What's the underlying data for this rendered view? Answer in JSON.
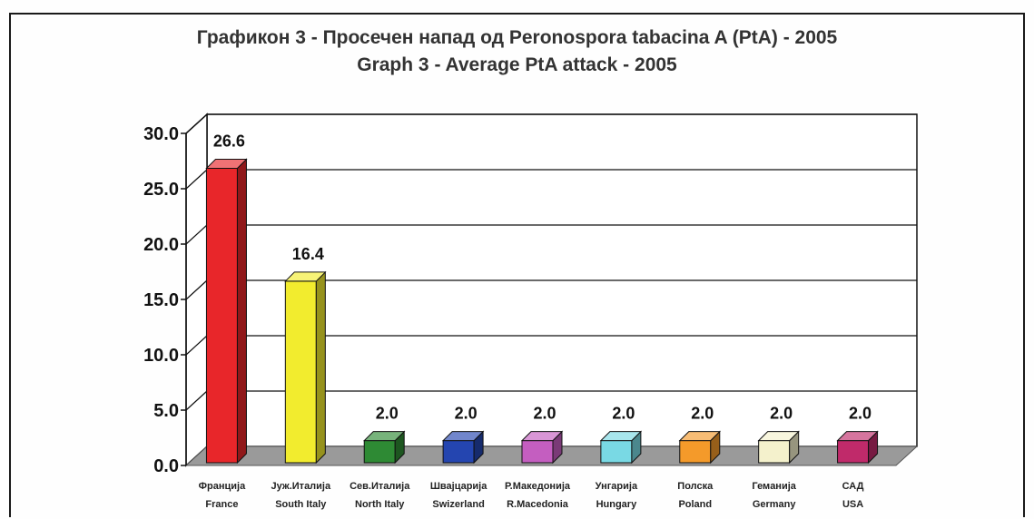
{
  "chart_data": {
    "type": "bar",
    "title": "Графикон 3 - Просечен напад од  Peronospora tabacina A (PtA) - 2005",
    "subtitle": "Graph 3 - Average PtA attack  - 2005",
    "categories": [
      {
        "line1": "Франција",
        "line2": "France"
      },
      {
        "line1": "Јуж.Италија",
        "line2": "South Italy"
      },
      {
        "line1": "Сев.Италија",
        "line2": "North Italy"
      },
      {
        "line1": "Швајцарија",
        "line2": "Swizerland"
      },
      {
        "line1": "Р.Македонија",
        "line2": "R.Macedonia"
      },
      {
        "line1": "Унгарија",
        "line2": "Hungary"
      },
      {
        "line1": "Полска",
        "line2": "Poland"
      },
      {
        "line1": "Гемaнија",
        "line2": "Germany"
      },
      {
        "line1": "САД",
        "line2": "USA"
      }
    ],
    "values": [
      26.6,
      16.4,
      2.0,
      2.0,
      2.0,
      2.0,
      2.0,
      2.0,
      2.0
    ],
    "value_labels": [
      "26.6",
      "16.4",
      "2.0",
      "2.0",
      "2.0",
      "2.0",
      "2.0",
      "2.0",
      "2.0"
    ],
    "bar_colors": [
      "#e8262a",
      "#f2ec2e",
      "#2e8a34",
      "#2445b0",
      "#c45ec0",
      "#79d9e4",
      "#f49a2a",
      "#f4f1cc",
      "#c02a6a"
    ],
    "ylim": [
      0,
      30
    ],
    "yticks": [
      "0.0",
      "5.0",
      "10.0",
      "15.0",
      "20.0",
      "25.0",
      "30.0"
    ],
    "grid": true,
    "style": "3d"
  }
}
